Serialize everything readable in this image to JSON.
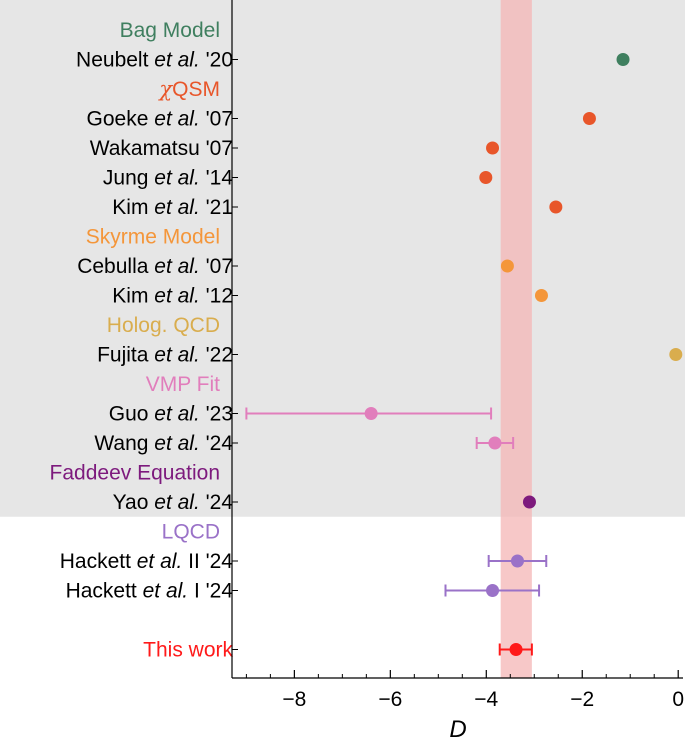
{
  "chart_data": {
    "type": "scatter",
    "xlabel": "D",
    "xlim": [
      -9.3,
      0.1
    ],
    "xticks": [
      -8,
      -6,
      -4,
      -2,
      0
    ],
    "xtick_labels": [
      "−8",
      "−6",
      "−4",
      "−2",
      "0"
    ],
    "band": {
      "low": -3.7,
      "high": -3.05,
      "color": "#f4b6b6"
    },
    "shaded_region_color": "#e6e6e6",
    "rows": [
      {
        "type": "group",
        "label": "Bag Model",
        "color": "#3f7f5f"
      },
      {
        "type": "point",
        "pre": "Neubelt ",
        "etal": "et al.",
        "post": " '20",
        "x": -1.15,
        "color": "#3f7f5f"
      },
      {
        "type": "group",
        "prefix": "χ",
        "label": "QSM",
        "color": "#e8562a"
      },
      {
        "type": "point",
        "pre": "Goeke ",
        "etal": "et al.",
        "post": " '07",
        "x": -1.85,
        "color": "#e8562a"
      },
      {
        "type": "point",
        "pre": "Wakamatsu '07",
        "etal": "",
        "post": "",
        "x": -3.87,
        "color": "#e8562a"
      },
      {
        "type": "point",
        "pre": "Jung ",
        "etal": "et al.",
        "post": " '14",
        "x": -4.01,
        "color": "#e8562a"
      },
      {
        "type": "point",
        "pre": "Kim ",
        "etal": "et al.",
        "post": " '21",
        "x": -2.55,
        "color": "#e8562a"
      },
      {
        "type": "group",
        "label": "Skyrme Model",
        "color": "#f4963a"
      },
      {
        "type": "point",
        "pre": "Cebulla ",
        "etal": "et al.",
        "post": " '07",
        "x": -3.56,
        "color": "#f4963a"
      },
      {
        "type": "point",
        "pre": "Kim ",
        "etal": "et al.",
        "post": " '12",
        "x": -2.85,
        "color": "#f4963a"
      },
      {
        "type": "group",
        "label": "Holog. QCD",
        "color": "#d9ad4e"
      },
      {
        "type": "point",
        "pre": "Fujita ",
        "etal": "et al.",
        "post": " '22",
        "x": -0.05,
        "color": "#d9ad4e"
      },
      {
        "type": "group",
        "label": "VMP Fit",
        "color": "#e17ebc"
      },
      {
        "type": "point",
        "pre": "Guo ",
        "etal": "et al.",
        "post": " '23",
        "x": -6.4,
        "xerr_low": -9.0,
        "xerr_high": -3.9,
        "color": "#e17ebc"
      },
      {
        "type": "point",
        "pre": "Wang ",
        "etal": "et al.",
        "post": " '24",
        "x": -3.82,
        "xerr_low": -4.2,
        "xerr_high": -3.44,
        "color": "#e17ebc"
      },
      {
        "type": "group",
        "label": "Faddeev Equation",
        "color": "#7d1a7d"
      },
      {
        "type": "point",
        "pre": "Yao ",
        "etal": "et al.",
        "post": " '24",
        "x": -3.1,
        "color": "#7d1a7d"
      },
      {
        "type": "group",
        "label": "LQCD",
        "color": "#9a72c8"
      },
      {
        "type": "point",
        "pre": "Hackett ",
        "etal": "et al.",
        "post": " II '24",
        "x": -3.35,
        "xerr_low": -3.95,
        "xerr_high": -2.75,
        "color": "#9a72c8"
      },
      {
        "type": "point",
        "pre": "Hackett ",
        "etal": "et al.",
        "post": " I '24",
        "x": -3.87,
        "xerr_low": -4.85,
        "xerr_high": -2.9,
        "color": "#9a72c8"
      },
      {
        "type": "spacer"
      },
      {
        "type": "point",
        "pre": "This work",
        "etal": "",
        "post": "",
        "x": -3.38,
        "xerr_low": -3.72,
        "xerr_high": -3.05,
        "color": "#ff1a1a",
        "label_color": "#ff1a1a"
      }
    ]
  }
}
